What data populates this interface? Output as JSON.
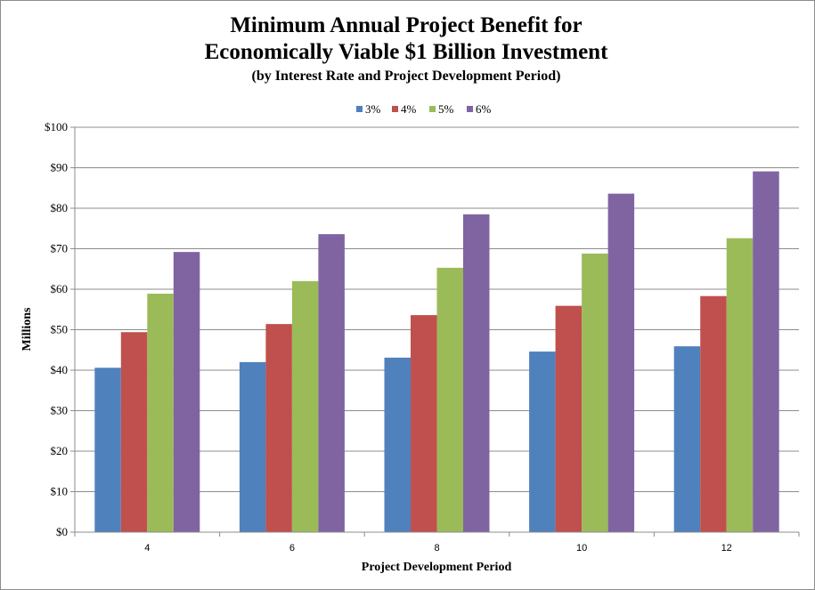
{
  "chart_data": {
    "type": "bar",
    "title_line1": "Minimum Annual Project Benefit for",
    "title_line2": "Economically Viable $1 Billion Investment",
    "subtitle": "(by Interest Rate and Project Development Period)",
    "xlabel": "Project  Development Period",
    "ylabel": "Millions",
    "categories": [
      "4",
      "6",
      "8",
      "10",
      "12"
    ],
    "y_ticks": [
      "$0",
      "$10",
      "$20",
      "$30",
      "$40",
      "$50",
      "$60",
      "$70",
      "$80",
      "$90",
      "$100"
    ],
    "ylim": [
      0,
      100
    ],
    "grid": true,
    "legend_position": "top",
    "series": [
      {
        "name": "3%",
        "color": "#4f81bd",
        "values": [
          40.6,
          42.0,
          43.1,
          44.6,
          45.9
        ]
      },
      {
        "name": "4%",
        "color": "#c0504d",
        "values": [
          49.4,
          51.4,
          53.6,
          55.9,
          58.3
        ]
      },
      {
        "name": "5%",
        "color": "#9bbb59",
        "values": [
          58.9,
          62.0,
          65.3,
          68.8,
          72.6
        ]
      },
      {
        "name": "6%",
        "color": "#8064a2",
        "values": [
          69.2,
          73.6,
          78.5,
          83.6,
          89.1
        ]
      }
    ]
  }
}
